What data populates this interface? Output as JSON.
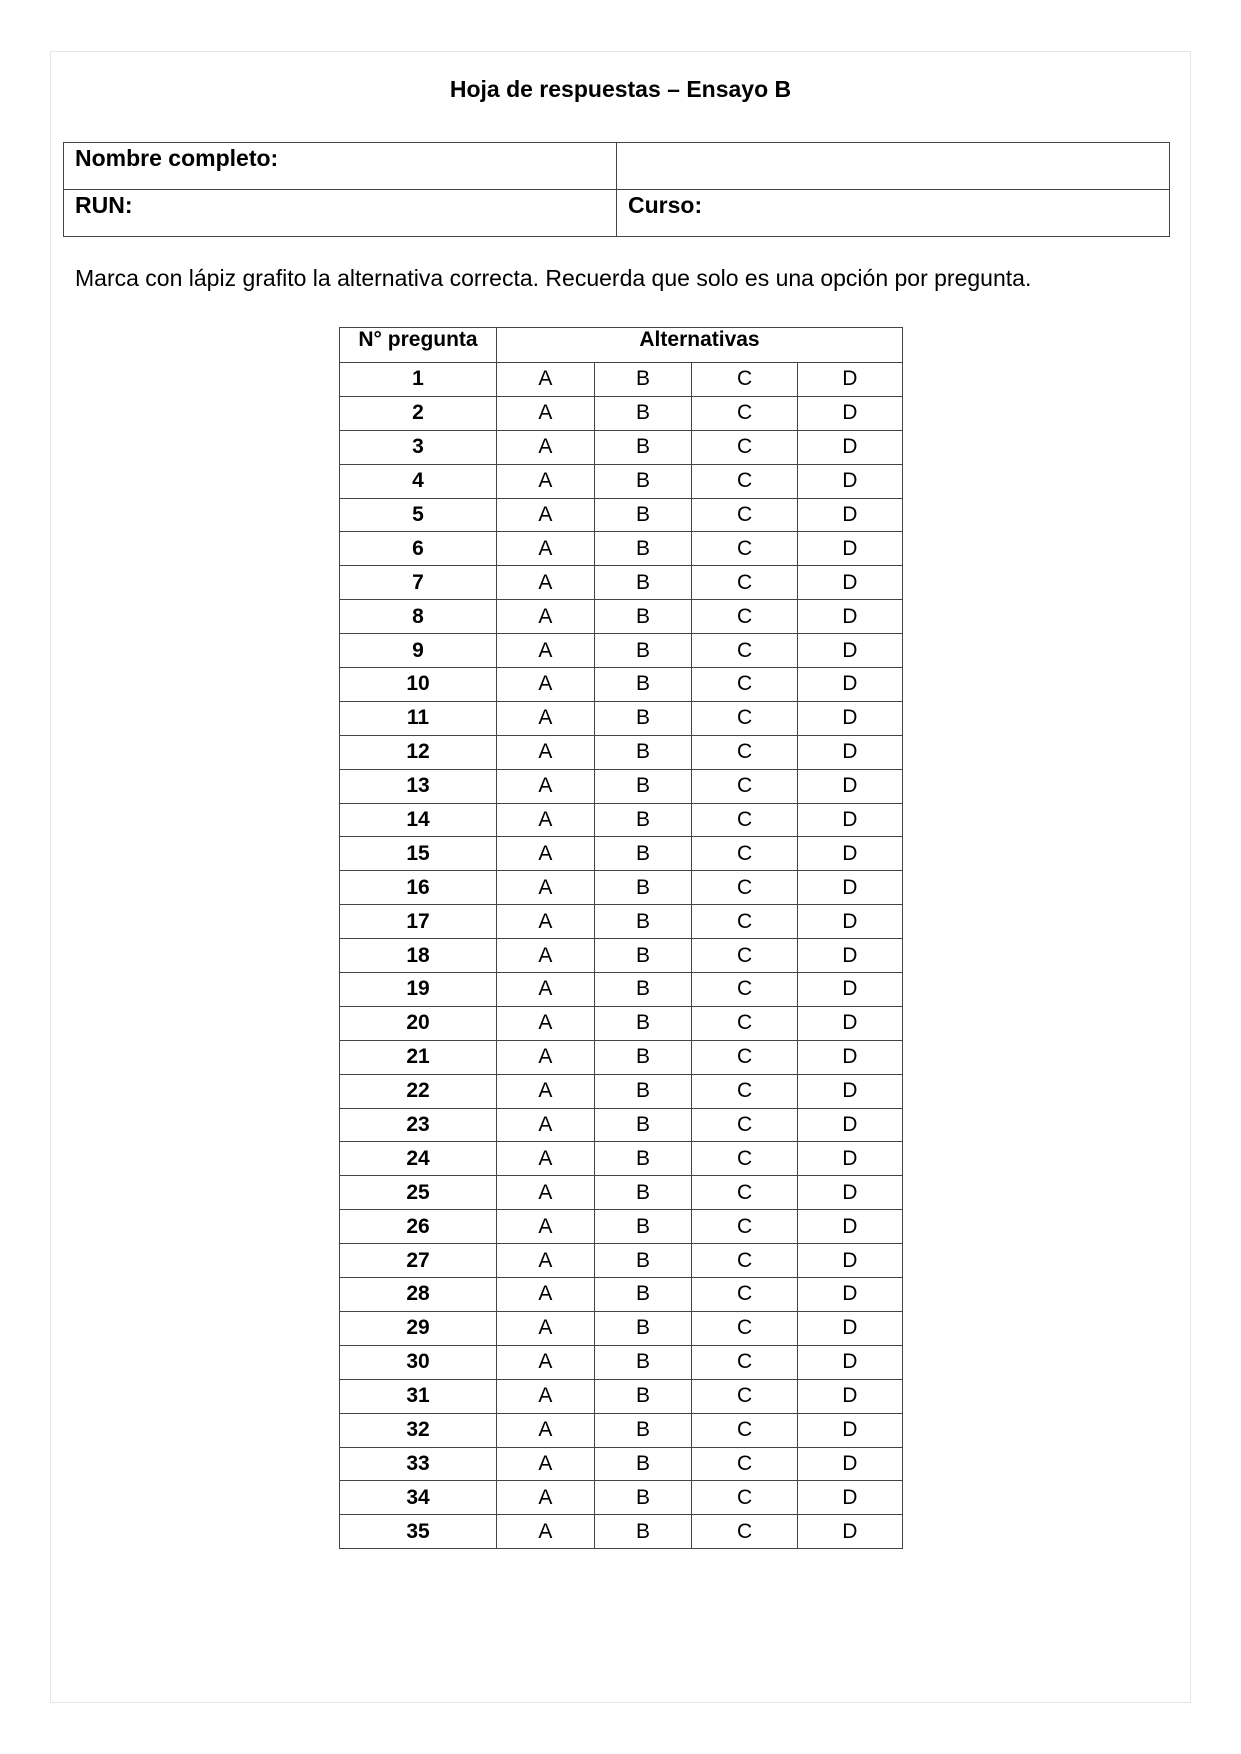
{
  "title": "Hoja de respuestas – Ensayo B",
  "info": {
    "name_label": "Nombre completo:",
    "run_label": "RUN:",
    "course_label": "Curso:"
  },
  "instructions": "Marca con lápiz grafito la alternativa correcta. Recuerda que solo es una opción por pregunta.",
  "answer_table": {
    "header_question": "N° pregunta",
    "header_alternatives": "Alternativas",
    "options": [
      "A",
      "B",
      "C",
      "D"
    ],
    "questions": [
      "1",
      "2",
      "3",
      "4",
      "5",
      "6",
      "7",
      "8",
      "9",
      "10",
      "11",
      "12",
      "13",
      "14",
      "15",
      "16",
      "17",
      "18",
      "19",
      "20",
      "21",
      "22",
      "23",
      "24",
      "25",
      "26",
      "27",
      "28",
      "29",
      "30",
      "31",
      "32",
      "33",
      "34",
      "35"
    ]
  }
}
